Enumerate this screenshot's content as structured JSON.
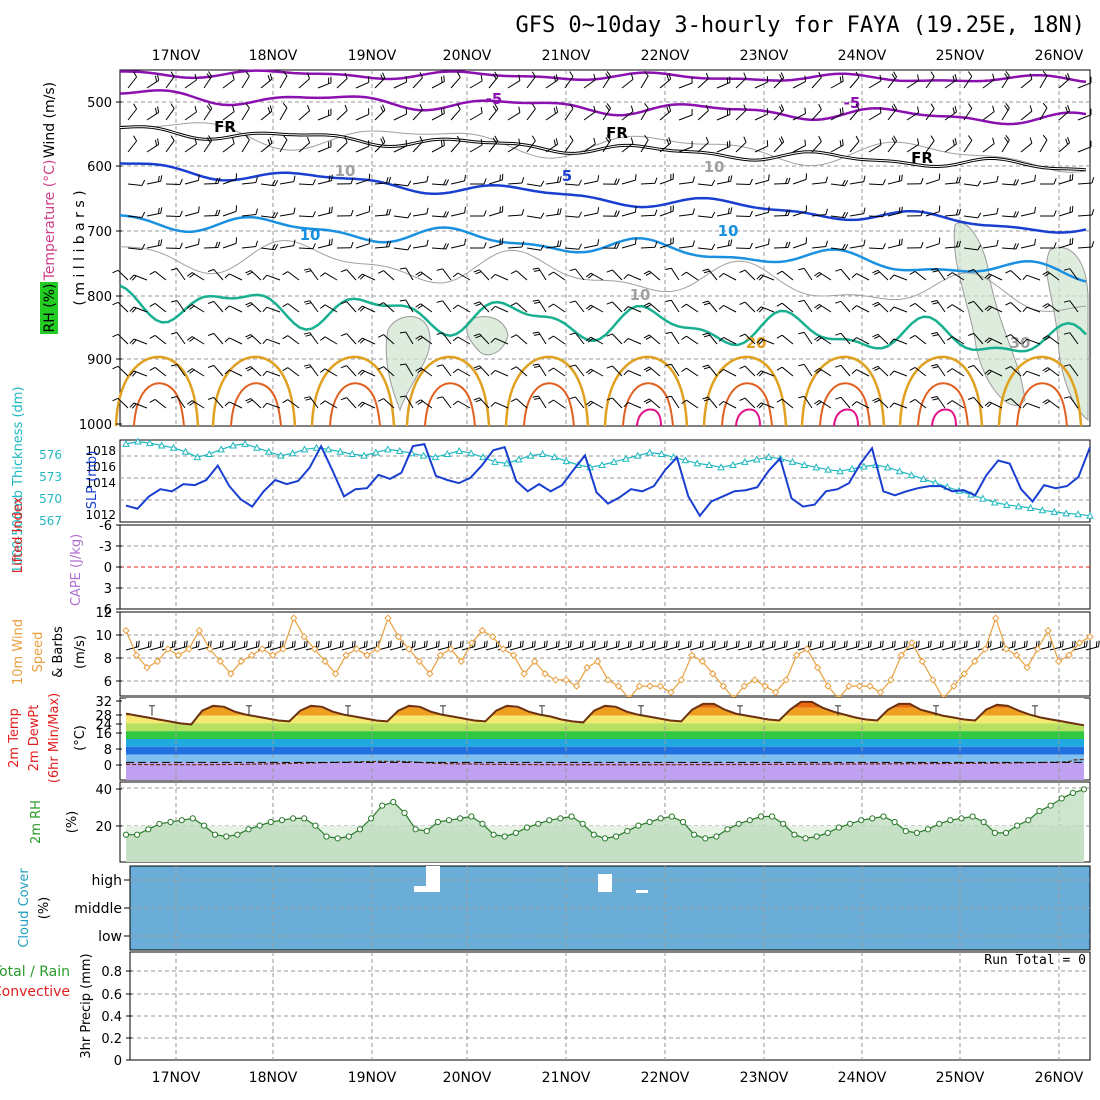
{
  "title": "GFS 0~10day 3-hourly for FAYA (19.25E, 18N)",
  "dates": [
    "17NOV",
    "18NOV",
    "19NOV",
    "20NOV",
    "21NOV",
    "22NOV",
    "23NOV",
    "24NOV",
    "25NOV",
    "26NOV"
  ],
  "colors": {
    "purple": "#8a10b0",
    "black": "#000000",
    "blue": "#1a3fd0",
    "sky": "#1a90e0",
    "teal": "#18b090",
    "orange": "#e0a020",
    "darkorange": "#e06020",
    "magenta": "#e0108a",
    "grid": "#9a9a9a",
    "slp": "#1a3fd0",
    "thick": "#20b8c0",
    "wind10": "#e8a040",
    "rh": "#2a9a2a",
    "cloud": "#6aaed8",
    "red": "#e02020"
  },
  "panels": {
    "upper": {
      "ylabel_wind": "Wind (m/s)",
      "ylabel_temp": "Temperature (°C)",
      "ylabel_rh": "RH (%)",
      "ylabel_press": "( m i l l i b a r s )",
      "ticks": [
        "500",
        "600",
        "700",
        "800",
        "900",
        "1000"
      ],
      "contour_labels": [
        "-5",
        "-5",
        "FR",
        "FR",
        "FR",
        "5",
        "10",
        "10",
        "10",
        "10",
        "20",
        "30",
        "10"
      ]
    },
    "slp": {
      "ylabel_thick": "1000-500mb Thickness (dm)",
      "ylabel_slp": "SLP (mb)",
      "left_ticks": [
        "576",
        "573",
        "570",
        "567"
      ],
      "right_ticks": [
        "1018",
        "1016",
        "1014",
        "1012"
      ]
    },
    "li": {
      "ylabel_li": "Lifted Index",
      "ylabel_cape": "CAPE (J/kg)",
      "ticks": [
        "-6",
        "-3",
        "0",
        "3",
        "6"
      ]
    },
    "wind10": {
      "ylabel_a": "10m Wind",
      "ylabel_b": "Speed",
      "ylabel_c": "& Barbs",
      "ylabel_unit": "(m/s)",
      "ticks": [
        "12",
        "10",
        "8",
        "6"
      ]
    },
    "temp2m": {
      "ylabel_a": "2m Temp",
      "ylabel_b": "2m DewPt",
      "ylabel_c": "(6hr Min/Max)",
      "ylabel_unit": "(°C)",
      "ticks": [
        "32",
        "28",
        "24",
        "16",
        "8",
        "0"
      ]
    },
    "rh2m": {
      "ylabel": "2m RH",
      "ylabel_unit": "(%)",
      "ticks": [
        "40",
        "20"
      ]
    },
    "cloud": {
      "ylabel": "Cloud Cover",
      "ylabel_unit": "(%)",
      "levels": [
        "high",
        "middle",
        "low"
      ]
    },
    "precip": {
      "ylabel": "3hr Precip (mm)",
      "legend_a": "Total / Rain",
      "legend_b": "Convective",
      "run_total": "Run Total = 0",
      "ticks": [
        "0.8",
        "0.6",
        "0.4",
        "0.2",
        "0"
      ]
    }
  },
  "chart_data": [
    {
      "type": "line",
      "name": "1000-500mb thickness",
      "x_unit": "3-hourly steps from 16NOV 12Z (8 per day, day 17NOV starts at step 4)",
      "unit": "dm",
      "values": [
        576.5,
        576.8,
        576.6,
        576.3,
        576.0,
        575.5,
        574.8,
        575.2,
        575.8,
        576.3,
        576.5,
        576.0,
        575.5,
        575.0,
        575.3,
        575.8,
        576.0,
        575.8,
        575.5,
        575.2,
        575.0,
        575.4,
        575.8,
        575.6,
        575.3,
        575.0,
        574.8,
        575.2,
        575.6,
        575.3,
        574.8,
        574.2,
        574.0,
        574.5,
        575.0,
        575.2,
        574.8,
        574.3,
        573.8,
        573.5,
        573.8,
        574.2,
        574.6,
        575.0,
        575.4,
        575.2,
        574.8,
        574.4,
        574.0,
        573.8,
        573.5,
        573.8,
        574.2,
        574.5,
        574.8,
        574.6,
        574.2,
        573.8,
        573.5,
        573.2,
        573.0,
        573.3,
        573.6,
        573.8,
        573.5,
        573.0,
        572.5,
        572.0,
        571.5,
        571.0,
        570.5,
        570.0,
        569.5,
        569.0,
        568.7,
        568.5,
        568.3,
        568.0,
        567.8,
        567.6,
        567.5,
        567.3
      ]
    },
    {
      "type": "line",
      "name": "SLP",
      "unit": "mb",
      "values": [
        1012.6,
        1012.3,
        1013.5,
        1014.2,
        1014.0,
        1014.7,
        1014.6,
        1015.1,
        1016.5,
        1014.5,
        1013.2,
        1012.5,
        1014.0,
        1015.1,
        1014.7,
        1015.0,
        1016.3,
        1018.4,
        1016.0,
        1013.5,
        1014.2,
        1014.3,
        1015.6,
        1015.2,
        1015.8,
        1018.4,
        1018.6,
        1015.5,
        1015.1,
        1014.8,
        1015.3,
        1016.5,
        1018.0,
        1018.3,
        1015.0,
        1014.0,
        1014.7,
        1014.0,
        1014.6,
        1016.1,
        1017.5,
        1013.9,
        1012.8,
        1013.4,
        1014.2,
        1014.0,
        1014.5,
        1016.1,
        1017.3,
        1013.5,
        1011.6,
        1013.0,
        1013.5,
        1014.0,
        1014.1,
        1014.4,
        1016.0,
        1017.2,
        1013.3,
        1012.5,
        1012.7,
        1014.0,
        1014.2,
        1014.8,
        1016.7,
        1018.2,
        1014.0,
        1013.6,
        1014.0,
        1014.3,
        1014.5,
        1014.5,
        1014.0,
        1014.1,
        1013.6,
        1015.6,
        1017.0,
        1016.7,
        1014.2,
        1013.0,
        1014.6,
        1014.3,
        1014.5,
        1015.4,
        1018.3
      ]
    },
    {
      "type": "line",
      "name": "10m wind speed",
      "unit": "m/s",
      "values": [
        10.5,
        8.5,
        7.5,
        8.0,
        9.0,
        8.5,
        9.0,
        10.5,
        9.0,
        8.0,
        7.0,
        8.0,
        8.5,
        9.0,
        8.5,
        9.0,
        11.5,
        10.0,
        9.0,
        8.0,
        7.0,
        8.5,
        9.0,
        8.5,
        9.0,
        11.5,
        10.0,
        9.0,
        8.0,
        7.0,
        8.5,
        9.0,
        8.0,
        9.5,
        10.5,
        10.0,
        9.0,
        8.5,
        7.0,
        8.0,
        7.0,
        6.5,
        6.5,
        6.0,
        7.5,
        8.0,
        6.5,
        6.0,
        5.0,
        6.0,
        6.0,
        6.0,
        5.5,
        6.5,
        8.5,
        8.0,
        7.0,
        6.0,
        5.0,
        6.0,
        6.5,
        6.0,
        5.5,
        6.5,
        8.5,
        9.0,
        7.5,
        6.0,
        5.0,
        6.0,
        6.0,
        6.0,
        5.5,
        6.5,
        8.5,
        9.5,
        8.0,
        6.5,
        5.0,
        6.0,
        7.0,
        8.0,
        9.0,
        11.5,
        9.0,
        8.5,
        7.5,
        9.0,
        10.5,
        8.0,
        8.5,
        9.5,
        10.0
      ]
    },
    {
      "type": "area",
      "name": "2m temperature",
      "unit": "°C",
      "values": [
        25.0,
        24.0,
        23.0,
        22.0,
        21.0,
        20.0,
        19.5,
        26.5,
        29.0,
        28.5,
        26.0,
        24.5,
        23.5,
        22.5,
        21.5,
        21.0,
        26.5,
        29.0,
        28.5,
        26.0,
        24.5,
        23.5,
        22.5,
        21.5,
        21.0,
        26.5,
        29.0,
        28.5,
        26.0,
        24.5,
        23.5,
        22.5,
        21.5,
        21.0,
        26.5,
        29.0,
        28.5,
        26.0,
        24.5,
        23.5,
        22.0,
        21.0,
        20.5,
        26.5,
        29.0,
        28.5,
        26.0,
        24.5,
        23.5,
        22.5,
        21.5,
        21.0,
        27.0,
        30.0,
        30.0,
        27.0,
        25.0,
        24.0,
        23.0,
        22.0,
        21.5,
        27.0,
        31.0,
        31.0,
        28.0,
        26.0,
        24.5,
        23.0,
        22.0,
        21.5,
        27.0,
        30.0,
        30.0,
        27.0,
        25.5,
        24.0,
        23.0,
        22.0,
        21.5,
        27.0,
        29.5,
        29.0,
        26.5,
        24.5,
        23.0,
        22.0,
        21.0,
        20.0,
        19.0
      ]
    },
    {
      "type": "area",
      "name": "2m relative humidity",
      "unit": "%",
      "values": [
        15,
        15,
        18,
        21,
        22,
        23,
        24,
        20,
        15,
        14,
        15,
        18,
        20,
        22,
        23,
        24,
        24,
        20,
        14,
        13,
        14,
        18,
        24,
        31,
        33,
        27,
        18,
        17,
        22,
        23,
        24,
        25,
        21,
        15,
        14,
        16,
        19,
        21,
        23,
        24,
        25,
        21,
        15,
        13,
        14,
        17,
        20,
        22,
        24,
        25,
        22,
        15,
        13,
        14,
        18,
        21,
        23,
        25,
        25,
        21,
        15,
        13,
        14,
        16,
        19,
        21,
        23,
        24,
        25,
        22,
        17,
        16,
        18,
        21,
        23,
        24,
        25,
        22,
        16,
        16,
        20,
        23,
        28,
        31,
        35,
        38,
        40
      ]
    },
    {
      "type": "bar",
      "name": "3hr precip",
      "unit": "mm",
      "values": [
        0
      ]
    }
  ]
}
